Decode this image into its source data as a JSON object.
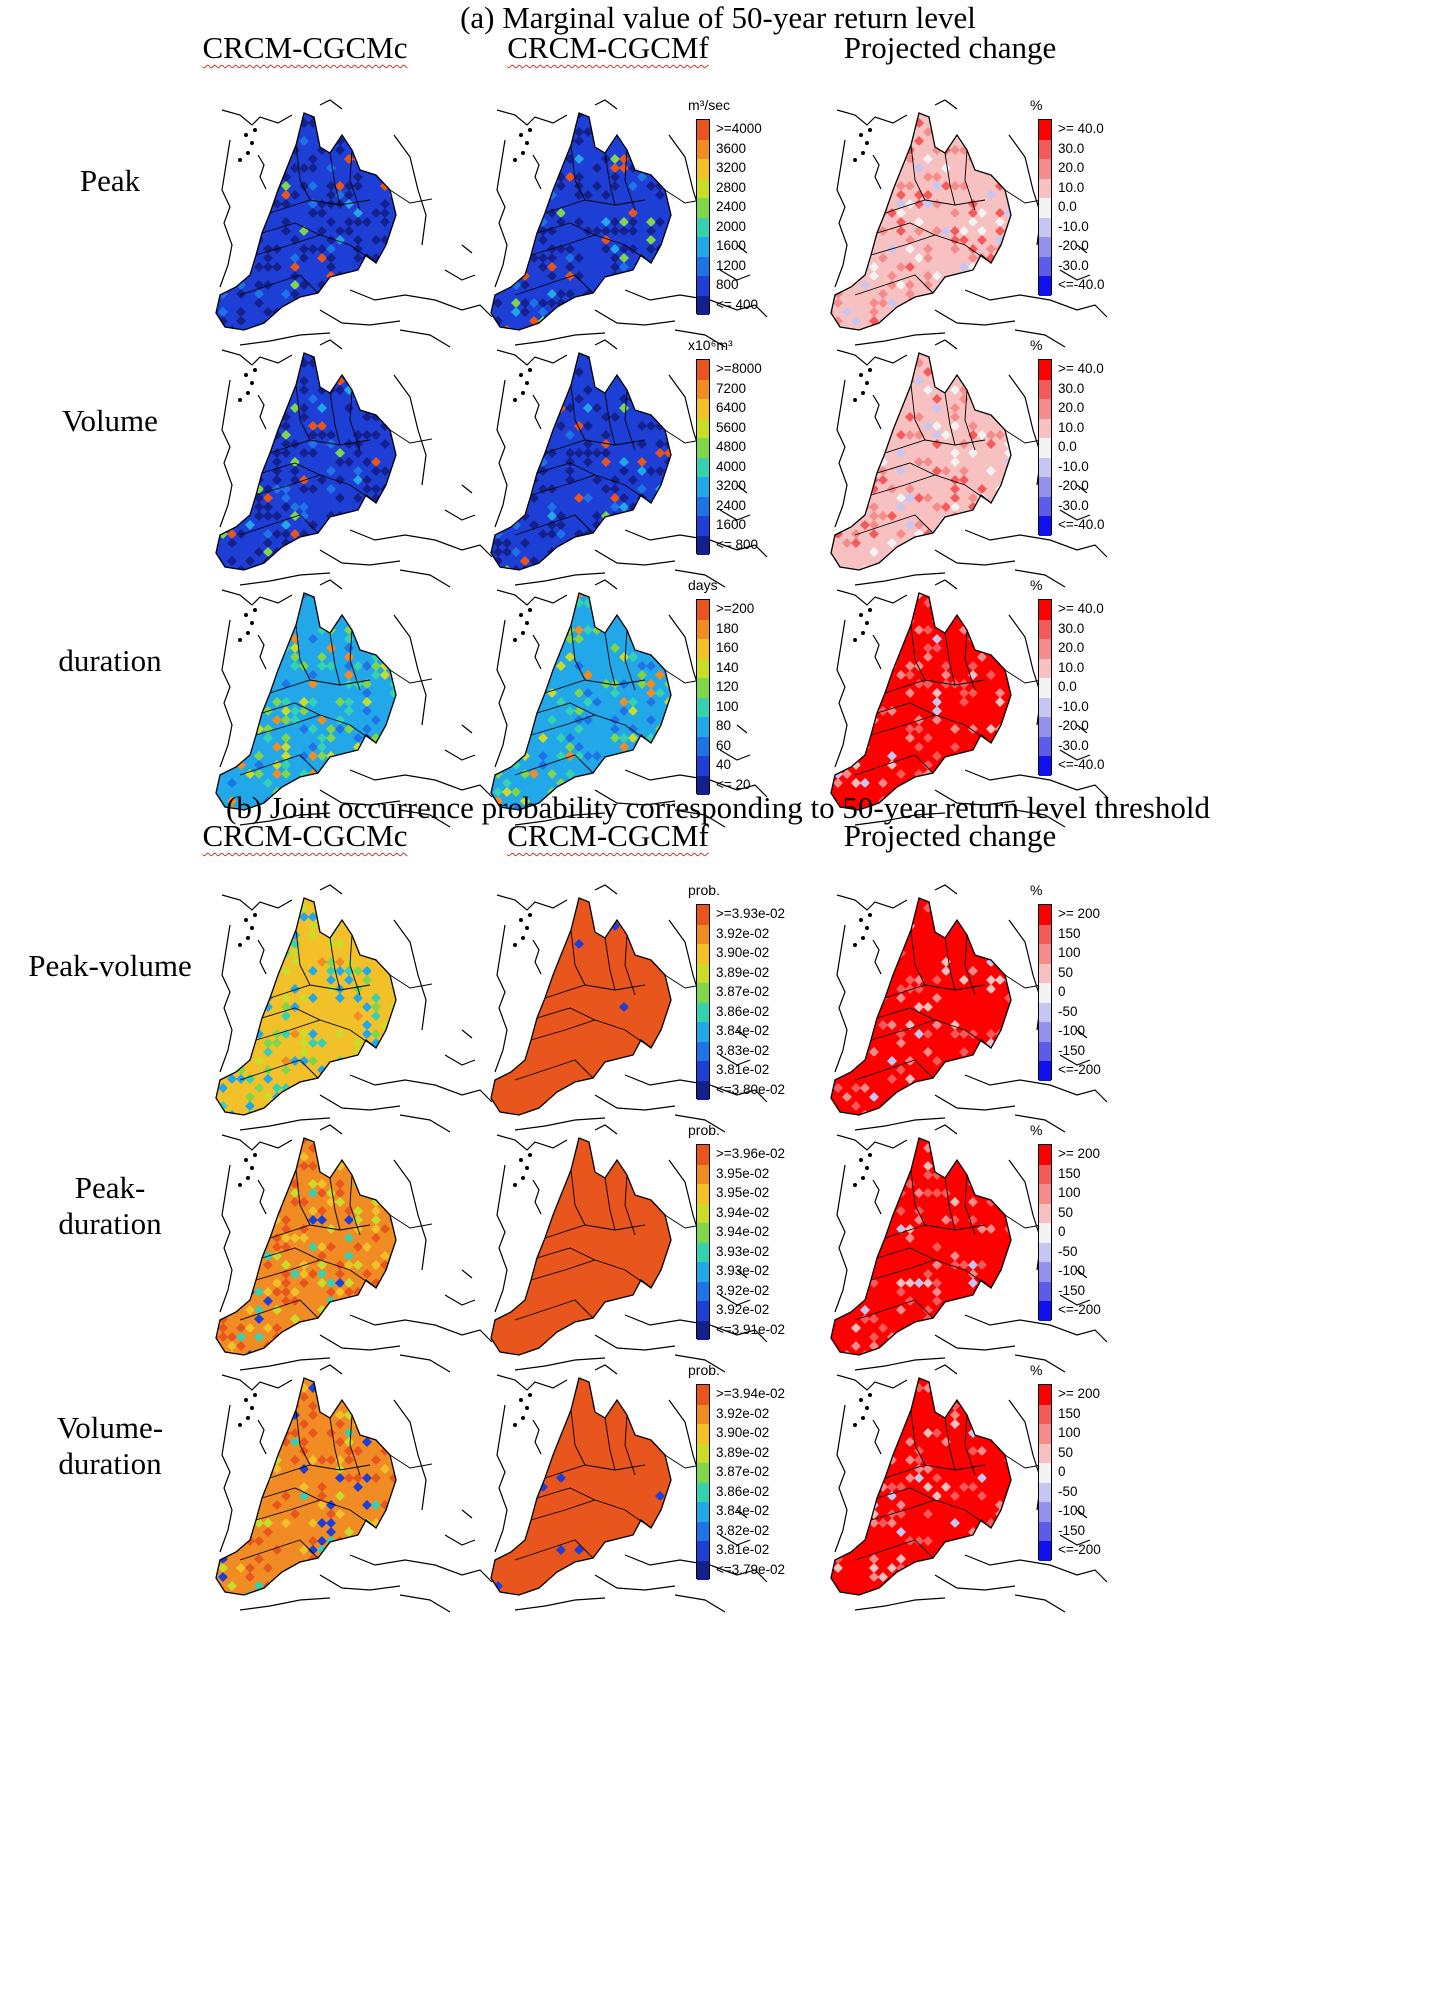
{
  "sections": [
    {
      "title": "(a) Marginal value of 50-year return level",
      "columns": [
        "CRCM-CGCMc",
        "CRCM-CGCMf",
        "Projected change"
      ],
      "rows": [
        {
          "label": "Peak",
          "value_legend": {
            "unit": "m³/sec",
            "ticks": [
              ">=4000",
              "3600",
              "3200",
              "2800",
              "2400",
              "2000",
              "1600",
              "1200",
              "800",
              "<= 400"
            ]
          },
          "change_legend": {
            "unit": "%",
            "ticks": [
              ">= 40.0",
              "30.0",
              "20.0",
              "10.0",
              "0.0",
              "-10.0",
              "-20.0",
              "-30.0",
              "<=-40.0"
            ]
          }
        },
        {
          "label": "Volume",
          "value_legend": {
            "unit": "x10⁶m³",
            "ticks": [
              ">=8000",
              "7200",
              "6400",
              "5600",
              "4800",
              "4000",
              "3200",
              "2400",
              "1600",
              "<= 800"
            ]
          },
          "change_legend": {
            "unit": "%",
            "ticks": [
              ">= 40.0",
              "30.0",
              "20.0",
              "10.0",
              "0.0",
              "-10.0",
              "-20.0",
              "-30.0",
              "<=-40.0"
            ]
          }
        },
        {
          "label": "duration",
          "value_legend": {
            "unit": "days",
            "ticks": [
              ">=200",
              "180",
              "160",
              "140",
              "120",
              "100",
              "80",
              "60",
              "40",
              "<= 20"
            ]
          },
          "change_legend": {
            "unit": "%",
            "ticks": [
              ">= 40.0",
              "30.0",
              "20.0",
              "10.0",
              "0.0",
              "-10.0",
              "-20.0",
              "-30.0",
              "<=-40.0"
            ]
          }
        }
      ]
    },
    {
      "title": "(b) Joint occurrence probability corresponding to 50-year return level threshold",
      "columns": [
        "CRCM-CGCMc",
        "CRCM-CGCMf",
        "Projected change"
      ],
      "rows": [
        {
          "label": "Peak-volume",
          "value_legend": {
            "unit": "prob.",
            "ticks": [
              ">=3.93e-02",
              "3.92e-02",
              "3.90e-02",
              "3.89e-02",
              "3.87e-02",
              "3.86e-02",
              "3.84e-02",
              "3.83e-02",
              "3.81e-02",
              "<=3.80e-02"
            ]
          },
          "change_legend": {
            "unit": "%",
            "ticks": [
              ">= 200",
              "150",
              "100",
              "50",
              "0",
              "-50",
              "-100",
              "-150",
              "<=-200"
            ]
          }
        },
        {
          "label": "Peak-\nduration",
          "value_legend": {
            "unit": "prob.",
            "ticks": [
              ">=3.96e-02",
              "3.95e-02",
              "3.95e-02",
              "3.94e-02",
              "3.94e-02",
              "3.93e-02",
              "3.93e-02",
              "3.92e-02",
              "3.92e-02",
              "<=3.91e-02"
            ]
          },
          "change_legend": {
            "unit": "%",
            "ticks": [
              ">= 200",
              "150",
              "100",
              "50",
              "0",
              "-50",
              "-100",
              "-150",
              "<=-200"
            ]
          }
        },
        {
          "label": "Volume-\nduration",
          "value_legend": {
            "unit": "prob.",
            "ticks": [
              ">=3.94e-02",
              "3.92e-02",
              "3.90e-02",
              "3.89e-02",
              "3.87e-02",
              "3.86e-02",
              "3.84e-02",
              "3.82e-02",
              "3.81e-02",
              "<=3.79e-02"
            ]
          },
          "change_legend": {
            "unit": "%",
            "ticks": [
              ">= 200",
              "150",
              "100",
              "50",
              "0",
              "-50",
              "-100",
              "-150",
              "<=-200"
            ]
          }
        }
      ]
    }
  ],
  "colors": {
    "value_scale": [
      "#e8561e",
      "#f08c23",
      "#f2c12a",
      "#c9dc2a",
      "#7fd64a",
      "#36d1b0",
      "#22a8e8",
      "#1e73e6",
      "#1e3fd6",
      "#14208c"
    ],
    "change_scale": [
      "#ff0000",
      "#f55a5a",
      "#f58c8c",
      "#f7c1c1",
      "#f3f3f3",
      "#c6c6f3",
      "#9393ee",
      "#5c5ceb",
      "#1010f0"
    ],
    "coast": "#000000"
  }
}
